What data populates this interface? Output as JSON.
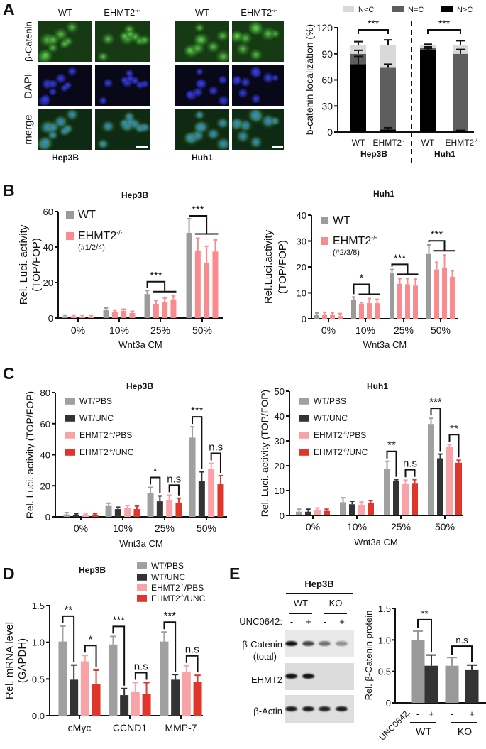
{
  "panel_labels": {
    "a": "A",
    "b": "B",
    "c": "C",
    "d": "D",
    "e": "E"
  },
  "panel_a": {
    "columns": [
      {
        "label": "WT",
        "sup": ""
      },
      {
        "label": "EHMT2",
        "sup": "-/-"
      },
      {
        "label": "WT",
        "sup": ""
      },
      {
        "label": "EHMT2",
        "sup": "-/-"
      }
    ],
    "rows": [
      "β-Catenin",
      "DAPI",
      "merge"
    ],
    "cell_lines": [
      "Hep3B",
      "Huh1"
    ]
  },
  "panel_e_blot": {
    "title": "Hep3B",
    "groups": [
      "WT",
      "KO"
    ],
    "treatment_label": "UNC0642:",
    "treatments": [
      "-",
      "+",
      "-",
      "+"
    ],
    "rows": [
      {
        "label": "β-Catenin",
        "sublabel": "(total)",
        "band_intensity": [
          1.0,
          0.75,
          0.55,
          0.4
        ]
      },
      {
        "label": "EHMT2",
        "sublabel": "",
        "band_intensity": [
          1.0,
          1.0,
          0,
          0
        ]
      },
      {
        "label": "β-Actin",
        "sublabel": "",
        "band_intensity": [
          0.95,
          0.95,
          0.9,
          0.95
        ]
      }
    ]
  },
  "chart_data": [
    {
      "id": "a",
      "type": "bar",
      "stacked": true,
      "title": "",
      "ylabel": "b-catenin localization (%)",
      "xlabel": "",
      "ylim": [
        0,
        120
      ],
      "yticks": [
        0,
        30,
        60,
        90,
        120
      ],
      "categories": [
        "WT",
        "EHMT2",
        "WT",
        "EHMT2"
      ],
      "category_sup": [
        "",
        "-/-",
        "",
        "-/-"
      ],
      "groups": [
        "Hep3B",
        "Huh1"
      ],
      "legend_placement": "top",
      "series": [
        {
          "name": "N>C",
          "color": "#000000",
          "values": [
            78,
            3,
            94,
            1
          ],
          "errors": [
            9,
            2,
            2,
            1
          ]
        },
        {
          "name": "N=C",
          "color": "#5e5e5e",
          "values": [
            12,
            71,
            3,
            89
          ],
          "errors": [
            4,
            4,
            1,
            5
          ]
        },
        {
          "name": "N<C",
          "color": "#d9d9d9",
          "values": [
            10,
            26,
            3,
            10
          ],
          "errors": [
            4,
            6,
            1,
            5
          ]
        }
      ],
      "legend_order": [
        2,
        1,
        0
      ],
      "significance": [
        {
          "pair": [
            0,
            1
          ],
          "label": "***"
        },
        {
          "pair": [
            2,
            3
          ],
          "label": "***"
        }
      ]
    },
    {
      "id": "b-hep3b",
      "type": "bar",
      "title": "Hep3B",
      "ylabel": "Rel. Luci. activity",
      "ylabel2": "(TOP/FOP)",
      "xlabel": "Wnt3a CM",
      "ylim": [
        0,
        60
      ],
      "yticks": [
        0,
        20,
        40,
        60
      ],
      "categories": [
        "0%",
        "10%",
        "25%",
        "50%"
      ],
      "legend_placement": "top-left",
      "series": [
        {
          "name": "WT",
          "sup": "",
          "suffix": "",
          "color": "#9b9b9b",
          "values": [
            1,
            4.8,
            13.5,
            48
          ],
          "errors": [
            0.7,
            0.8,
            2,
            8
          ]
        },
        {
          "name": "EHMT2",
          "sup": "-/-",
          "suffix": "",
          "note": "(#1/2/4)",
          "color": "#f98b8e",
          "values": [
            1,
            3.5,
            8,
            38
          ],
          "errors": [
            0.7,
            1,
            2,
            7
          ]
        },
        {
          "name": "",
          "color": "#f98b8e",
          "values": [
            0.8,
            4,
            9,
            31
          ],
          "errors": [
            0.7,
            1,
            2.3,
            9.5
          ]
        },
        {
          "name": "",
          "color": "#f98b8e",
          "values": [
            0.6,
            2.8,
            10.5,
            37.5
          ],
          "errors": [
            0.8,
            1,
            2,
            6.5
          ]
        }
      ],
      "legend_series": [
        0,
        1
      ],
      "significance": [
        {
          "category": 2,
          "group": true,
          "label": "***"
        },
        {
          "category": 3,
          "group": true,
          "label": "***"
        }
      ]
    },
    {
      "id": "b-huh1",
      "type": "bar",
      "title": "Huh1",
      "ylabel": "Rel.Luci.activity",
      "ylabel2": "(TOP/FOP)",
      "xlabel": "Wnt3a CM",
      "ylim": [
        0,
        40
      ],
      "yticks": [
        0,
        10,
        20,
        30,
        40
      ],
      "categories": [
        "0%",
        "10%",
        "25%",
        "50%"
      ],
      "legend_placement": "top-left",
      "series": [
        {
          "name": "WT",
          "sup": "",
          "suffix": "",
          "color": "#9b9b9b",
          "values": [
            1.5,
            7.2,
            17.5,
            25
          ],
          "errors": [
            0.7,
            1.2,
            1.5,
            3.5
          ]
        },
        {
          "name": "EHMT2",
          "sup": "-/-",
          "suffix": "",
          "note": "(#2/3/8)",
          "color": "#f98b8e",
          "values": [
            1.5,
            5.8,
            13.5,
            19
          ],
          "errors": [
            1,
            0.5,
            2,
            2.8
          ]
        },
        {
          "name": "",
          "color": "#f98b8e",
          "values": [
            1.5,
            6,
            13.3,
            19.8
          ],
          "errors": [
            0.8,
            1.8,
            2.2,
            4.8
          ]
        },
        {
          "name": "",
          "color": "#f98b8e",
          "values": [
            1,
            6,
            12.8,
            16.2
          ],
          "errors": [
            1,
            1.5,
            2.5,
            2.3
          ]
        }
      ],
      "legend_series": [
        0,
        1
      ],
      "significance": [
        {
          "category": 1,
          "group": true,
          "label": "*"
        },
        {
          "category": 2,
          "group": true,
          "label": "***"
        },
        {
          "category": 3,
          "group": true,
          "label": "***"
        }
      ]
    },
    {
      "id": "c-hep3b",
      "type": "bar",
      "title": "Hep3B",
      "ylabel": "Rel. Luci. activity (TOP/FOP)",
      "xlabel": "Wnt3a CM",
      "ylim": [
        0,
        80
      ],
      "yticks": [
        0,
        20,
        40,
        60,
        80
      ],
      "categories": [
        "0%",
        "10%",
        "25%",
        "50%"
      ],
      "legend_placement": "top-left",
      "series": [
        {
          "name": "WT",
          "sup": "",
          "suffix": "/PBS",
          "color": "#a0a0a0",
          "values": [
            1.5,
            7,
            15.5,
            51
          ],
          "errors": [
            1.2,
            1.8,
            3.5,
            7
          ]
        },
        {
          "name": "WT",
          "sup": "",
          "suffix": "/UNC",
          "color": "#333333",
          "values": [
            1,
            5,
            10,
            23
          ],
          "errors": [
            1,
            1.2,
            3.5,
            6
          ]
        },
        {
          "name": "EHMT2",
          "sup": "-/-",
          "suffix": "/PBS",
          "color": "#f9a3a8",
          "values": [
            1,
            5.5,
            11,
            31
          ],
          "errors": [
            1,
            1.8,
            3,
            3.5
          ]
        },
        {
          "name": "EHMT2",
          "sup": "-/-",
          "suffix": "/UNC",
          "color": "#e0352b",
          "values": [
            1,
            5,
            9,
            21
          ],
          "errors": [
            1,
            2,
            3,
            5.5
          ]
        }
      ],
      "legend_series": [
        0,
        1,
        2,
        3
      ],
      "significance": [
        {
          "category": 2,
          "pair": [
            0,
            1
          ],
          "label": "*"
        },
        {
          "category": 2,
          "pair": [
            2,
            3
          ],
          "label": "n.s"
        },
        {
          "category": 3,
          "pair": [
            0,
            1
          ],
          "label": "***"
        },
        {
          "category": 3,
          "pair": [
            2,
            3
          ],
          "label": "n.s"
        }
      ]
    },
    {
      "id": "c-huh1",
      "type": "bar",
      "title": "Huh1",
      "ylabel": "Rel. Luci. activity (TOP/FOP)",
      "xlabel": "Wnt3a CM",
      "ylim": [
        0,
        50
      ],
      "yticks": [
        0,
        10,
        20,
        30,
        40,
        50
      ],
      "categories": [
        "0%",
        "10%",
        "25%",
        "50%"
      ],
      "legend_placement": "top-left",
      "series": [
        {
          "name": "WT",
          "sup": "",
          "suffix": "/PBS",
          "color": "#a0a0a0",
          "values": [
            1.5,
            5.3,
            18.8,
            36.8
          ],
          "errors": [
            1,
            1.8,
            3,
            2.3
          ]
        },
        {
          "name": "WT",
          "sup": "",
          "suffix": "/UNC",
          "color": "#333333",
          "values": [
            1.5,
            4.5,
            14,
            23
          ],
          "errors": [
            1,
            1.2,
            0.4,
            1.7
          ]
        },
        {
          "name": "EHMT2",
          "sup": "-/-",
          "suffix": "/PBS",
          "color": "#f9a3a8",
          "values": [
            2,
            4,
            12.6,
            27.5
          ],
          "errors": [
            1,
            1.4,
            1.6,
            1
          ]
        },
        {
          "name": "EHMT2",
          "sup": "-/-",
          "suffix": "/UNC",
          "color": "#e0352b",
          "values": [
            1.8,
            5,
            12.8,
            21.2
          ],
          "errors": [
            0.7,
            1,
            1.6,
            1
          ]
        }
      ],
      "legend_series": [
        0,
        1,
        2,
        3
      ],
      "significance": [
        {
          "category": 2,
          "pair": [
            0,
            1
          ],
          "label": "**"
        },
        {
          "category": 2,
          "pair": [
            2,
            3
          ],
          "label": "n.s"
        },
        {
          "category": 3,
          "pair": [
            0,
            1
          ],
          "label": "***"
        },
        {
          "category": 3,
          "pair": [
            2,
            3
          ],
          "label": "**"
        }
      ]
    },
    {
      "id": "d",
      "type": "bar",
      "title": "Hep3B",
      "ylabel": "Rel. mRNA level",
      "ylabel2": "(GAPDH)",
      "xlabel": "",
      "ylim": [
        0,
        1.5
      ],
      "yticks": [
        "0.0",
        "0.5",
        "1.0",
        "1.5"
      ],
      "categories": [
        "cMyc",
        "CCND1",
        "MMP-7"
      ],
      "legend_placement": "top-right (outside)",
      "series": [
        {
          "name": "WT",
          "sup": "",
          "suffix": "/PBS",
          "color": "#a0a0a0",
          "values": [
            1.01,
            0.97,
            1.01
          ],
          "errors": [
            0.21,
            0.11,
            0.13
          ]
        },
        {
          "name": "WT",
          "sup": "",
          "suffix": "/UNC",
          "color": "#333333",
          "values": [
            0.49,
            0.28,
            0.49
          ],
          "errors": [
            0.2,
            0.09,
            0.07
          ]
        },
        {
          "name": "EHMT2",
          "sup": "-/-",
          "suffix": "/PBS",
          "color": "#f9a3a8",
          "values": [
            0.74,
            0.32,
            0.59
          ],
          "errors": [
            0.08,
            0.13,
            0.09
          ]
        },
        {
          "name": "EHMT2",
          "sup": "-/-",
          "suffix": "/UNC",
          "color": "#e0352b",
          "values": [
            0.43,
            0.3,
            0.46
          ],
          "errors": [
            0.19,
            0.15,
            0.09
          ]
        }
      ],
      "legend_series": [
        0,
        1,
        2,
        3
      ],
      "significance": [
        {
          "category": 0,
          "pair": [
            0,
            1
          ],
          "label": "**"
        },
        {
          "category": 0,
          "pair": [
            2,
            3
          ],
          "label": "*"
        },
        {
          "category": 1,
          "pair": [
            0,
            1
          ],
          "label": "***"
        },
        {
          "category": 1,
          "pair": [
            2,
            3
          ],
          "label": "n.s"
        },
        {
          "category": 2,
          "pair": [
            0,
            1
          ],
          "label": "***"
        },
        {
          "category": 2,
          "pair": [
            2,
            3
          ],
          "label": "n.s"
        }
      ]
    },
    {
      "id": "e",
      "type": "bar",
      "title": "",
      "ylabel": "Rel. β-Catenin protein",
      "xlabel": "",
      "ylim": [
        0,
        1.5
      ],
      "yticks": [
        "0",
        "0.5",
        "1.0",
        "1.5"
      ],
      "treatment_label": "UNC0642:",
      "categories": [
        "-",
        "+",
        "-",
        "+"
      ],
      "groups": [
        "WT",
        "KO"
      ],
      "series": [
        {
          "name": "",
          "colors": [
            "#999999",
            "#333333",
            "#999999",
            "#333333"
          ],
          "values": [
            1.0,
            0.59,
            0.59,
            0.52
          ],
          "errors": [
            0.14,
            0.17,
            0.13,
            0.08
          ]
        }
      ],
      "significance": [
        {
          "pair": [
            0,
            1
          ],
          "label": "**"
        },
        {
          "pair": [
            2,
            3
          ],
          "label": "n.s"
        }
      ]
    }
  ]
}
